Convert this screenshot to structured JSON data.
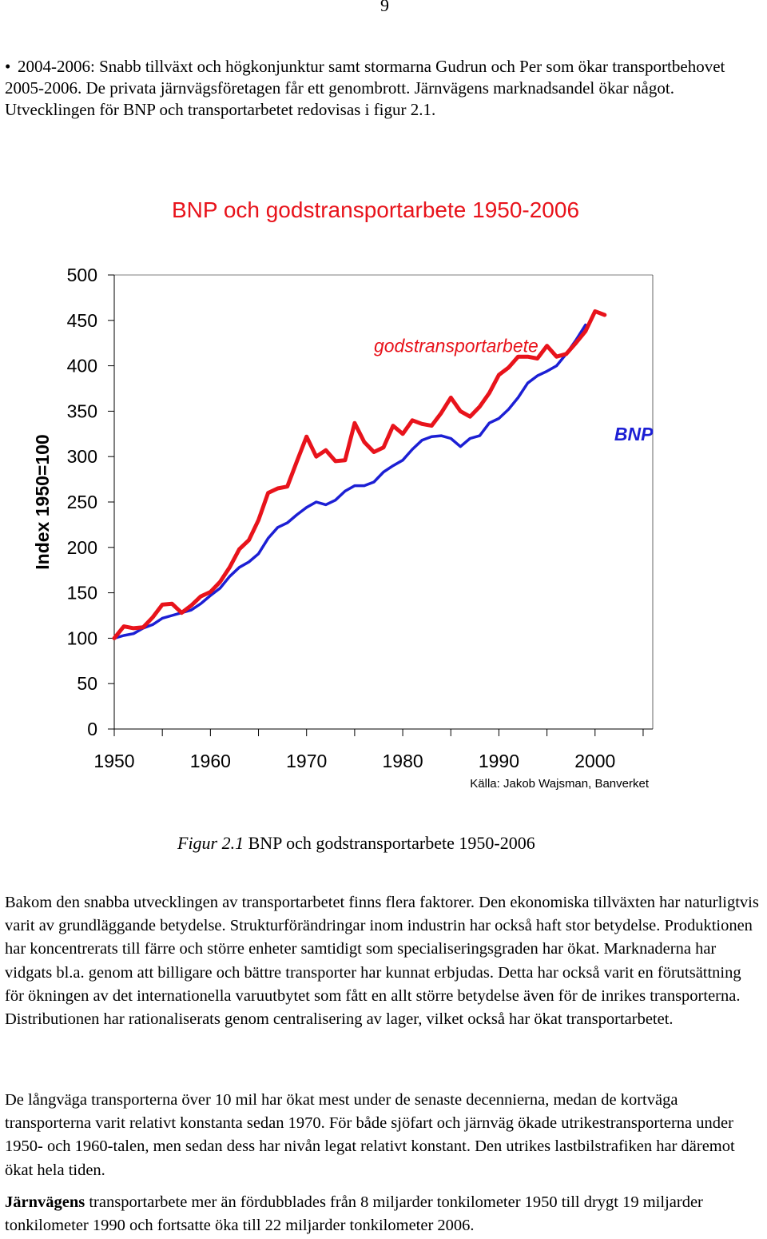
{
  "page_number": "9",
  "bullet": {
    "symbol": "•",
    "text": "2004-2006: Snabb tillväxt och högkonjunktur samt stormarna Gudrun och Per som ökar transportbehovet 2005-2006. De privata järnvägsföretagen får ett genombrott. Järnvägens marknadsandel ökar något. Utvecklingen för BNP och transportarbetet redovisas i figur 2.1."
  },
  "chart_data": {
    "type": "line",
    "title": "BNP och godstransportarbete 1950-2006",
    "ylabel": "Index 1950=100",
    "xlabel": "",
    "ylim": [
      0,
      500
    ],
    "xlim": [
      1950,
      2006
    ],
    "yticks": [
      "0",
      "50",
      "100",
      "150",
      "200",
      "250",
      "300",
      "350",
      "400",
      "450",
      "500"
    ],
    "xticks": [
      "1950",
      "1960",
      "1970",
      "1980",
      "1990",
      "2000"
    ],
    "source": "Källa: Jakob Wajsman, Banverket",
    "grid": false,
    "series": [
      {
        "name": "godstransportarbete",
        "color": "#e8131b",
        "x": [
          1950,
          1951,
          1952,
          1953,
          1954,
          1955,
          1956,
          1957,
          1958,
          1959,
          1960,
          1961,
          1962,
          1963,
          1964,
          1965,
          1966,
          1967,
          1968,
          1969,
          1970,
          1971,
          1972,
          1973,
          1974,
          1975,
          1976,
          1977,
          1978,
          1979,
          1980,
          1981,
          1982,
          1983,
          1984,
          1985,
          1986,
          1987,
          1988,
          1989,
          1990,
          1991,
          1992,
          1993,
          1994,
          1995,
          1996,
          1997,
          1998,
          1999,
          2000,
          2001,
          2002,
          2003,
          2004,
          2005,
          2006
        ],
        "y": [
          100,
          113,
          111,
          112,
          123,
          137,
          138,
          128,
          136,
          146,
          151,
          162,
          178,
          198,
          208,
          230,
          260,
          265,
          267,
          295,
          322,
          300,
          307,
          295,
          296,
          337,
          316,
          305,
          310,
          334,
          325,
          340,
          336,
          334,
          348,
          365,
          350,
          344,
          355,
          370,
          390,
          398,
          410,
          410,
          408,
          422,
          410,
          413,
          425,
          438,
          460,
          456,
          null,
          null,
          null,
          null,
          null
        ]
      },
      {
        "name": "BNP",
        "color": "#1c1fd4",
        "x": [
          1950,
          1951,
          1952,
          1953,
          1954,
          1955,
          1956,
          1957,
          1958,
          1959,
          1960,
          1961,
          1962,
          1963,
          1964,
          1965,
          1966,
          1967,
          1968,
          1969,
          1970,
          1971,
          1972,
          1973,
          1974,
          1975,
          1976,
          1977,
          1978,
          1979,
          1980,
          1981,
          1982,
          1983,
          1984,
          1985,
          1986,
          1987,
          1988,
          1989,
          1990,
          1991,
          1992,
          1993,
          1994,
          1995,
          1996,
          1997,
          1998,
          1999,
          2000,
          2001,
          2002,
          2003,
          2004,
          2005,
          2006
        ],
        "y": [
          100,
          103,
          105,
          111,
          115,
          122,
          125,
          128,
          131,
          138,
          147,
          155,
          168,
          178,
          184,
          193,
          210,
          222,
          227,
          236,
          244,
          250,
          247,
          252,
          262,
          268,
          268,
          272,
          283,
          290,
          296,
          308,
          318,
          322,
          323,
          320,
          311,
          320,
          323,
          337,
          342,
          352,
          365,
          381,
          389,
          394,
          400,
          413,
          428,
          445,
          null,
          null,
          null,
          null,
          null,
          null,
          null
        ]
      }
    ],
    "annotations": [
      {
        "text": "godstransportarbete",
        "x": 1977,
        "y": 415
      },
      {
        "text": "BNP",
        "x": 2002,
        "y": 318
      }
    ]
  },
  "caption": {
    "figure": "Figur 2.1",
    "text": "BNP och godstransportarbete 1950-2006"
  },
  "paragraphs": [
    {
      "bold_lead": "",
      "text": "Bakom den snabba utvecklingen av transportarbetet finns flera faktorer. Den ekonomiska tillväxten har naturligtvis varit av grundläggande betydelse. Strukturförändringar inom industrin har också haft stor betydelse. Produktionen har koncentrerats till färre och större enheter samtidigt som specialiseringsgraden har ökat. Marknaderna har vidgats bl.a. genom att billigare och bättre transporter har kunnat erbjudas. Detta har också varit en förutsättning för ökningen av det internationella varuutbytet som fått en allt större betydelse även för de inrikes transporterna. Distributionen har rationaliserats genom centralisering av lager, vilket också har ökat transportarbetet."
    },
    {
      "bold_lead": "",
      "text": "De långväga transporterna över 10 mil har ökat mest under de senaste decennierna, medan de kortväga transporterna varit relativt konstanta sedan 1970. För både sjöfart och järnväg ökade utrikestransporterna under 1950- och 1960-talen, men sedan dess har nivån legat relativt konstant. Den utrikes lastbilstrafiken har däremot ökat hela tiden."
    },
    {
      "bold_lead": "Järnvägens",
      "text": " transportarbete mer än fördubblades från 8 miljarder tonkilometer 1950 till drygt 19 miljarder tonkilometer 1990 och fortsatte öka till 22 miljarder tonkilometer 2006."
    }
  ]
}
